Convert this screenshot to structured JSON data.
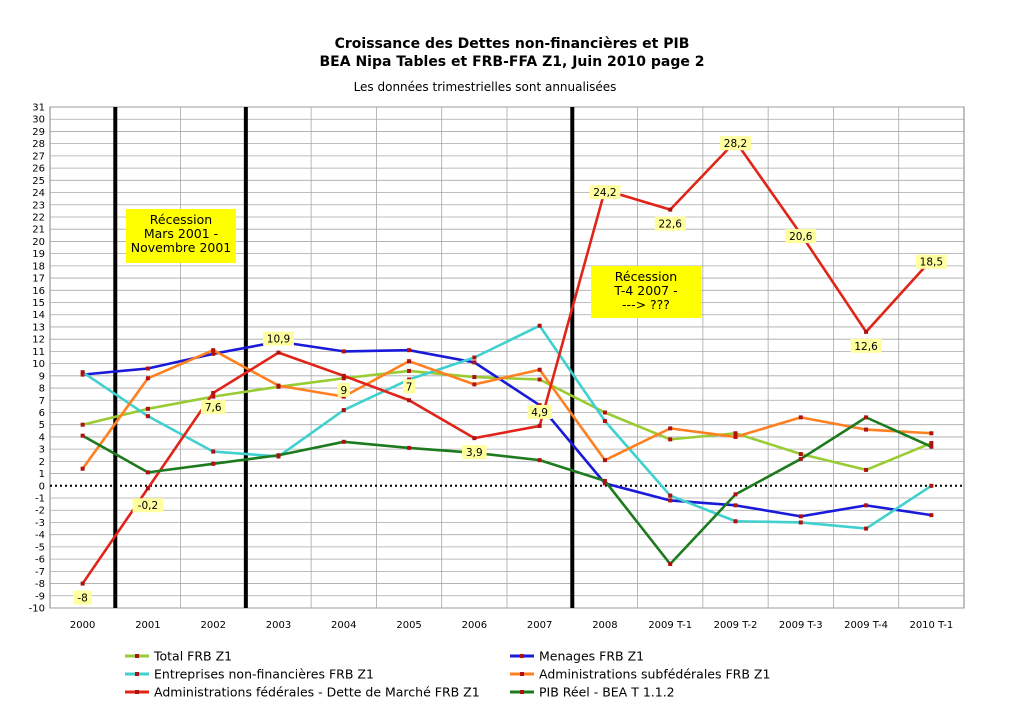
{
  "chart_data": {
    "type": "line",
    "title": "Croissance des Dettes non-financières et PIB",
    "title2": "BEA Nipa Tables et FRB-FFA Z1,  Juin 2010 page 2",
    "subtitle": "Les données trimestrielles sont annualisées",
    "categories": [
      "2000",
      "2001",
      "2002",
      "2003",
      "2004",
      "2005",
      "2006",
      "2007",
      "2008",
      "2009 T-1",
      "2009 T-2",
      "2009 T-3",
      "2009 T-4",
      "2010 T-1"
    ],
    "ylim": [
      -10,
      31
    ],
    "ytick_step": 1,
    "grid": true,
    "legend_position": "bottom",
    "series": [
      {
        "name": "Total FRB Z1",
        "color": "#99cc33",
        "values": [
          5,
          6.3,
          7.3,
          8.1,
          8.8,
          9.4,
          8.9,
          8.7,
          6,
          3.8,
          4.3,
          2.6,
          1.3,
          3.5
        ]
      },
      {
        "name": "Menages FRB Z1",
        "color": "#1a1ad9",
        "values": [
          9.1,
          9.6,
          10.8,
          11.8,
          11,
          11.1,
          10.1,
          6.6,
          0.2,
          -1.2,
          -1.6,
          -2.5,
          -1.6,
          -2.4
        ]
      },
      {
        "name": "Entreprises non-financières FRB Z1",
        "color": "#40d0d0",
        "values": [
          9.3,
          5.7,
          2.8,
          2.4,
          6.2,
          8.7,
          10.5,
          13.1,
          5.3,
          -0.8,
          -2.9,
          -3,
          -3.5,
          0
        ]
      },
      {
        "name": "Administrations subfédérales FRB Z1",
        "color": "#ff8020",
        "values": [
          1.4,
          8.8,
          11.1,
          8.2,
          7.3,
          10.2,
          8.3,
          9.5,
          2.1,
          4.7,
          4,
          5.6,
          4.6,
          4.3
        ]
      },
      {
        "name": "Administrations fédérales - Dette de Marché FRB Z1",
        "color": "#e02418",
        "values": [
          -8,
          -0.2,
          7.6,
          10.9,
          9,
          7,
          3.9,
          4.9,
          24.2,
          22.6,
          28.2,
          20.6,
          12.6,
          18.5
        ]
      },
      {
        "name": "PIB Réel - BEA T 1.1.2",
        "color": "#1e7a1e",
        "values": [
          4.1,
          1.1,
          1.8,
          2.5,
          3.6,
          3.1,
          2.7,
          2.1,
          0.4,
          -6.4,
          -0.7,
          2.2,
          5.6,
          3.2
        ]
      }
    ],
    "data_labels": [
      {
        "series": "Administrations fédérales - Dette de Marché FRB Z1",
        "index": 0,
        "text": "-8"
      },
      {
        "series": "Administrations fédérales - Dette de Marché FRB Z1",
        "index": 1,
        "text": "-0,2"
      },
      {
        "series": "Administrations fédérales - Dette de Marché FRB Z1",
        "index": 2,
        "text": "7,6"
      },
      {
        "series": "Administrations fédérales - Dette de Marché FRB Z1",
        "index": 3,
        "text": "10,9"
      },
      {
        "series": "Administrations fédérales - Dette de Marché FRB Z1",
        "index": 4,
        "text": "9"
      },
      {
        "series": "Administrations fédérales - Dette de Marché FRB Z1",
        "index": 5,
        "text": "7"
      },
      {
        "series": "Administrations fédérales - Dette de Marché FRB Z1",
        "index": 6,
        "text": "3,9"
      },
      {
        "series": "Administrations fédérales - Dette de Marché FRB Z1",
        "index": 7,
        "text": "4,9"
      },
      {
        "series": "Administrations fédérales - Dette de Marché FRB Z1",
        "index": 8,
        "text": "24,2"
      },
      {
        "series": "Administrations fédérales - Dette de Marché FRB Z1",
        "index": 9,
        "text": "22,6"
      },
      {
        "series": "Administrations fédérales - Dette de Marché FRB Z1",
        "index": 10,
        "text": "28,2"
      },
      {
        "series": "Administrations fédérales - Dette de Marché FRB Z1",
        "index": 11,
        "text": "20,6"
      },
      {
        "series": "Administrations fédérales - Dette de Marché FRB Z1",
        "index": 12,
        "text": "12,6"
      },
      {
        "series": "Administrations fédérales - Dette de Marché FRB Z1",
        "index": 13,
        "text": "18,5"
      }
    ],
    "vertical_markers": [
      0.5,
      2.5,
      7.5
    ],
    "annotations": [
      {
        "lines": [
          "Récession",
          "Mars 2001 -",
          "Novembre 2001"
        ],
        "color": "#ffff00"
      },
      {
        "lines": [
          "Récession",
          "T-4 2007 -",
          "---> ???"
        ],
        "color": "#ffff00"
      }
    ]
  }
}
